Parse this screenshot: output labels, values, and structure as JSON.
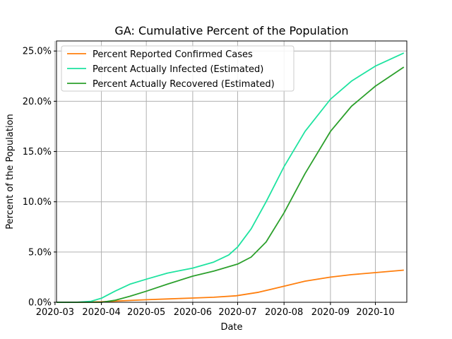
{
  "chart_data": {
    "type": "line",
    "title": "GA: Cumulative Percent of the Population",
    "xlabel": "Date",
    "ylabel": "Percent of the Population",
    "xlim": [
      "2020-03-02",
      "2020-10-22"
    ],
    "ylim": [
      0,
      26
    ],
    "y_ticks": [
      0,
      5,
      10,
      15,
      20,
      25
    ],
    "y_tick_labels": [
      "0.0%",
      "5.0%",
      "10.0%",
      "15.0%",
      "20.0%",
      "25.0%"
    ],
    "x_ticks": [
      "2020-03-01",
      "2020-04-01",
      "2020-05-01",
      "2020-06-01",
      "2020-07-01",
      "2020-08-01",
      "2020-09-01",
      "2020-10-01"
    ],
    "x_tick_labels": [
      "2020-03",
      "2020-04",
      "2020-05",
      "2020-06",
      "2020-07",
      "2020-08",
      "2020-09",
      "2020-10"
    ],
    "grid": true,
    "legend_position": "top-left",
    "series": [
      {
        "name": "Percent Reported Confirmed Cases",
        "color": "#ff7f0e",
        "points": [
          [
            "2020-03-02",
            0
          ],
          [
            "2020-03-15",
            0
          ],
          [
            "2020-04-01",
            0.05
          ],
          [
            "2020-04-15",
            0.15
          ],
          [
            "2020-05-01",
            0.25
          ],
          [
            "2020-05-15",
            0.33
          ],
          [
            "2020-06-01",
            0.42
          ],
          [
            "2020-06-15",
            0.5
          ],
          [
            "2020-06-30",
            0.65
          ],
          [
            "2020-07-15",
            1.0
          ],
          [
            "2020-08-01",
            1.6
          ],
          [
            "2020-08-15",
            2.1
          ],
          [
            "2020-09-01",
            2.5
          ],
          [
            "2020-09-15",
            2.75
          ],
          [
            "2020-10-01",
            2.95
          ],
          [
            "2020-10-20",
            3.2
          ]
        ]
      },
      {
        "name": "Percent Actually Infected (Estimated)",
        "color": "#1ee3a0",
        "points": [
          [
            "2020-03-02",
            0
          ],
          [
            "2020-03-15",
            0
          ],
          [
            "2020-03-25",
            0.1
          ],
          [
            "2020-04-01",
            0.4
          ],
          [
            "2020-04-10",
            1.1
          ],
          [
            "2020-04-20",
            1.8
          ],
          [
            "2020-05-01",
            2.3
          ],
          [
            "2020-05-15",
            2.9
          ],
          [
            "2020-06-01",
            3.4
          ],
          [
            "2020-06-15",
            4.0
          ],
          [
            "2020-06-25",
            4.7
          ],
          [
            "2020-07-01",
            5.5
          ],
          [
            "2020-07-10",
            7.3
          ],
          [
            "2020-07-20",
            10.0
          ],
          [
            "2020-08-01",
            13.5
          ],
          [
            "2020-08-15",
            17.0
          ],
          [
            "2020-09-01",
            20.2
          ],
          [
            "2020-09-15",
            22.0
          ],
          [
            "2020-10-01",
            23.5
          ],
          [
            "2020-10-20",
            24.8
          ]
        ]
      },
      {
        "name": "Percent Actually Recovered (Estimated)",
        "color": "#2ca02c",
        "points": [
          [
            "2020-03-02",
            0
          ],
          [
            "2020-04-01",
            0
          ],
          [
            "2020-04-10",
            0.2
          ],
          [
            "2020-04-20",
            0.6
          ],
          [
            "2020-05-01",
            1.1
          ],
          [
            "2020-05-15",
            1.8
          ],
          [
            "2020-06-01",
            2.6
          ],
          [
            "2020-06-15",
            3.1
          ],
          [
            "2020-07-01",
            3.8
          ],
          [
            "2020-07-10",
            4.5
          ],
          [
            "2020-07-20",
            6.0
          ],
          [
            "2020-08-01",
            8.9
          ],
          [
            "2020-08-15",
            12.8
          ],
          [
            "2020-09-01",
            17.0
          ],
          [
            "2020-09-15",
            19.5
          ],
          [
            "2020-10-01",
            21.5
          ],
          [
            "2020-10-20",
            23.4
          ]
        ]
      }
    ]
  }
}
